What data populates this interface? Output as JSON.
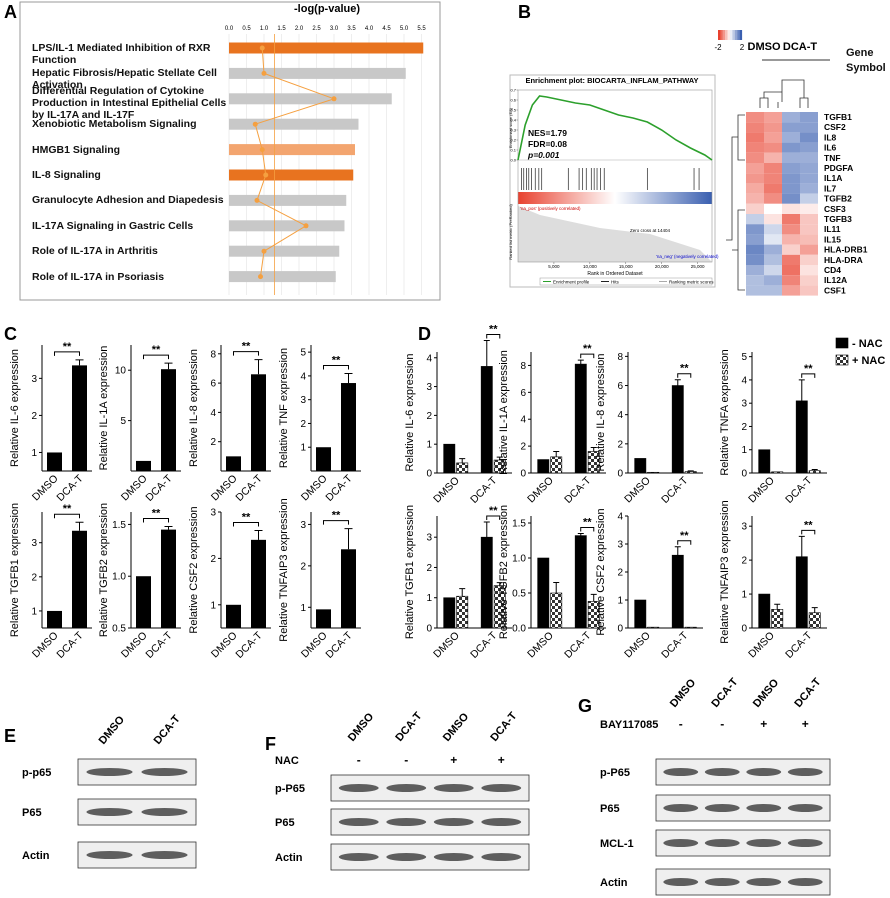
{
  "panel_labels": [
    "A",
    "B",
    "C",
    "D",
    "E",
    "F",
    "G"
  ],
  "chart_data": [
    {
      "type": "hbar",
      "title": "-log(p-value)",
      "categories": [
        "LPS/IL-1 Mediated Inhibition of RXR Function",
        "Hepatic Fibrosis/Hepatic Stellate Cell Activation",
        "Differential Regulation of Cytokine Production in Intestinal Epithelial Cells by IL-17A and IL-17F",
        "Xenobiotic Metabolism Signaling",
        "HMGB1 Signaling",
        "IL-8 Signaling",
        "Granulocyte Adhesion and Diapedesis",
        "IL-17A Signaling in Gastric Cells",
        "Role of IL-17A in Arthritis",
        "Role of IL-17A in Psoriasis"
      ],
      "values": [
        5.55,
        5.05,
        4.65,
        3.7,
        3.6,
        3.55,
        3.35,
        3.3,
        3.15,
        3.05
      ],
      "colors": [
        "#e8731f",
        "#c8c8c8",
        "#c8c8c8",
        "#c8c8c8",
        "#f3a56f",
        "#e8731f",
        "#c8c8c8",
        "#c8c8c8",
        "#c8c8c8",
        "#c8c8c8"
      ],
      "xlim": [
        0,
        5.6
      ],
      "xticks": [
        {
          "value": 0,
          "label": "0.0"
        },
        0.5,
        {
          "value": 1,
          "label": "1.0"
        },
        1.5,
        {
          "value": 2,
          "label": "2.0"
        },
        2.5,
        {
          "value": 3,
          "label": "3.0"
        },
        3.5,
        {
          "value": 4,
          "label": "4.0"
        },
        4.5,
        {
          "value": 5,
          "label": "5.0"
        },
        5.5
      ],
      "threshold": 1.3,
      "ratio": {
        "color": "#f5a040",
        "values": [
          0.95,
          1.0,
          3.0,
          0.75,
          0.95,
          1.05,
          0.8,
          2.2,
          1.0,
          0.9
        ]
      }
    },
    {
      "type": "gsea",
      "title": "Enrichment plot: BIOCARTA_INFLAM_PATHWAY",
      "stats": [
        "NES=1.79",
        "FDR=0.08",
        "p=0.001"
      ],
      "ylabel": "Enrichment score (ES)",
      "metric_label": "Ranked list metric (PreRanked)",
      "xlabel": "Rank in Ordered Dataset",
      "pos_label": "'na_pos' (positively correlated)",
      "neg_label": "'na_neg' (negatively correlated)",
      "zero_cross": "Zero cross at 14404",
      "legend": [
        "Enrichment profile",
        "Hits",
        "Ranking metric scores"
      ],
      "color": "#2ca02c",
      "x": [
        0,
        1000,
        2000,
        3000,
        4000,
        6000,
        8000,
        10000,
        12000,
        14000,
        16000,
        18000,
        20000,
        22000,
        24000,
        26000,
        27000
      ],
      "values": [
        0,
        0.35,
        0.55,
        0.64,
        0.63,
        0.6,
        0.57,
        0.55,
        0.5,
        0.45,
        0.42,
        0.38,
        0.3,
        0.2,
        0.12,
        0.05,
        0
      ],
      "hits": [
        500,
        800,
        1200,
        1500,
        1900,
        2400,
        2900,
        3300,
        7000,
        8500,
        9000,
        9500,
        10200,
        10600,
        11000,
        11500,
        12000,
        18000,
        24500,
        25200
      ],
      "xlim": [
        0,
        27000
      ],
      "xticks": [
        {
          "value": 5000,
          "label": "5,000"
        },
        {
          "value": 10000,
          "label": "10,000"
        },
        {
          "value": 15000,
          "label": "15,000"
        },
        {
          "value": 20000,
          "label": "20,000"
        },
        {
          "value": 25000,
          "label": "25,000"
        }
      ],
      "ylim": [
        -0.05,
        0.7
      ],
      "yticks": [
        {
          "value": 0,
          "label": "0.0"
        },
        0.1,
        0.2,
        0.3,
        0.4,
        0.5,
        0.6,
        0.7
      ]
    },
    {
      "type": "heatmap",
      "groups": [
        "DMSO",
        "DCA-T"
      ],
      "row_header": "Gene Symbol",
      "zlim": [
        -2,
        2
      ],
      "zticks": [
        -2,
        2
      ],
      "colors": [
        "#e8412f",
        "#ffffff",
        "#3a5fb0"
      ],
      "rows": [
        "TGFB1",
        "CSF2",
        "IL8",
        "IL6",
        "TNF",
        "PDGFA",
        "IL1A",
        "IL7",
        "TGFB2",
        "CSF3",
        "TGFB3",
        "IL11",
        "IL15",
        "HLA-DRB1",
        "HLA-DRA",
        "CD4",
        "IL12A",
        "CSF1"
      ],
      "values": [
        [
          -1.2,
          -1.0,
          1.0,
          1.2
        ],
        [
          -1.3,
          -1.1,
          1.2,
          1.2
        ],
        [
          -1.4,
          -1.0,
          1.0,
          1.4
        ],
        [
          -1.3,
          -1.2,
          1.3,
          1.2
        ],
        [
          -1.2,
          -0.8,
          1.0,
          1.0
        ],
        [
          -1.0,
          -1.3,
          1.2,
          1.1
        ],
        [
          -1.1,
          -1.3,
          1.3,
          1.1
        ],
        [
          -0.9,
          -1.4,
          1.3,
          1.0
        ],
        [
          -0.8,
          -1.2,
          1.4,
          0.6
        ],
        [
          -0.5,
          0,
          -0.3,
          -0.2
        ],
        [
          0.6,
          -0.3,
          -1.4,
          -0.6
        ],
        [
          1.3,
          0.5,
          -1.2,
          -0.6
        ],
        [
          1.2,
          0.3,
          -0.8,
          -0.7
        ],
        [
          1.5,
          1.0,
          -0.5,
          -1.0
        ],
        [
          1.4,
          0.8,
          -1.4,
          -0.5
        ],
        [
          1.0,
          0.5,
          -1.5,
          -0.3
        ],
        [
          0.8,
          1.0,
          -1.3,
          -0.5
        ],
        [
          0.8,
          0.8,
          -1.0,
          -0.6
        ]
      ]
    },
    {
      "type": "bar",
      "ylabel": "Relative IL-6 expression",
      "categories": [
        "DMSO",
        "DCA-T"
      ],
      "values": [
        1,
        3.35
      ],
      "errors": [
        null,
        0.15
      ],
      "significance": "**",
      "color": "#000000",
      "ylim": [
        0.5,
        3.9
      ],
      "yticks": [
        1,
        2,
        3
      ]
    },
    {
      "type": "bar",
      "ylabel": "Relative IL-1A expression",
      "categories": [
        "DMSO",
        "DCA-T"
      ],
      "values": [
        1,
        10.1
      ],
      "errors": [
        null,
        0.6
      ],
      "significance": "**",
      "color": "#000000",
      "ylim": [
        0,
        12.5
      ],
      "yticks": [
        5,
        10
      ]
    },
    {
      "type": "bar",
      "ylabel": "Relative IL-8 expression",
      "categories": [
        "DMSO",
        "DCA-T"
      ],
      "values": [
        1,
        6.6
      ],
      "errors": [
        null,
        1.0
      ],
      "significance": "**",
      "color": "#000000",
      "ylim": [
        0,
        8.6
      ],
      "yticks": [
        2,
        4,
        6,
        8
      ]
    },
    {
      "type": "bar",
      "ylabel": "Relative TNF expression",
      "categories": [
        "DMSO",
        "DCA-T"
      ],
      "values": [
        1,
        3.7
      ],
      "errors": [
        null,
        0.4
      ],
      "significance": "**",
      "color": "#000000",
      "ylim": [
        0,
        5.3
      ],
      "yticks": [
        1,
        2,
        3,
        4,
        5
      ]
    },
    {
      "type": "bar",
      "ylabel": "Relative TGFB1 expression",
      "categories": [
        "DMSO",
        "DCA-T"
      ],
      "values": [
        1,
        3.35
      ],
      "errors": [
        null,
        0.25
      ],
      "significance": "**",
      "color": "#000000",
      "ylim": [
        0.5,
        3.9
      ],
      "yticks": [
        1,
        2,
        3
      ]
    },
    {
      "type": "bar",
      "ylabel": "Relative TGFB2 expression",
      "categories": [
        "DMSO",
        "DCA-T"
      ],
      "values": [
        1.0,
        1.45
      ],
      "errors": [
        null,
        0.03
      ],
      "significance": "**",
      "color": "#000000",
      "ylim": [
        0.5,
        1.62
      ],
      "yticks": [
        0.5,
        {
          "value": 1,
          "label": "1.0"
        },
        1.5
      ]
    },
    {
      "type": "bar",
      "ylabel": "Relative CSF2 expression",
      "categories": [
        "DMSO",
        "DCA-T"
      ],
      "values": [
        1,
        2.4
      ],
      "errors": [
        null,
        0.2
      ],
      "significance": "**",
      "color": "#000000",
      "ylim": [
        0.5,
        3.0
      ],
      "yticks": [
        1,
        2,
        3
      ]
    },
    {
      "type": "bar",
      "ylabel": "Relative TNFAIP3 expression",
      "categories": [
        "DMSO",
        "DCA-T"
      ],
      "values": [
        0.95,
        2.4
      ],
      "errors": [
        null,
        0.5
      ],
      "significance": "**",
      "color": "#000000",
      "ylim": [
        0.5,
        3.3
      ],
      "yticks": [
        1,
        2,
        3
      ]
    },
    {
      "type": "grouped_bar",
      "ylabel": "Relative IL-6 expression",
      "categories": [
        "DMSO",
        "DCA-T"
      ],
      "significance": "**",
      "ylim": [
        0,
        4.2
      ],
      "yticks": [
        0,
        1,
        2,
        3,
        4
      ],
      "series": [
        {
          "values": [
            1,
            3.7
          ],
          "errors": [
            null,
            0.9
          ]
        },
        {
          "values": [
            0.35,
            0.45
          ],
          "errors": [
            0.15,
            0.1
          ]
        }
      ]
    },
    {
      "type": "grouped_bar",
      "ylabel": "Relative IL-1A expression",
      "categories": [
        "DMSO",
        "DCA-T"
      ],
      "significance": "**",
      "ylim": [
        0,
        9
      ],
      "yticks": [
        0,
        2,
        4,
        6,
        8
      ],
      "series": [
        {
          "values": [
            1,
            8.1
          ],
          "errors": [
            null,
            0.3
          ]
        },
        {
          "values": [
            1.2,
            1.6
          ],
          "errors": [
            0.4,
            0.3
          ]
        }
      ]
    },
    {
      "type": "grouped_bar",
      "ylabel": "Relative IL-8 expression",
      "categories": [
        "DMSO",
        "DCA-T"
      ],
      "significance": "**",
      "ylim": [
        0,
        8.3
      ],
      "yticks": [
        0,
        2,
        4,
        6,
        8
      ],
      "series": [
        {
          "values": [
            1,
            6.0
          ],
          "errors": [
            null,
            0.4
          ]
        },
        {
          "values": [
            0.05,
            0.1
          ],
          "errors": [
            null,
            0.05
          ]
        }
      ]
    },
    {
      "type": "grouped_bar",
      "ylabel": "Relative TNFA expression",
      "categories": [
        "DMSO",
        "DCA-T"
      ],
      "significance": "**",
      "ylim": [
        0,
        5.2
      ],
      "yticks": [
        0,
        1,
        2,
        3,
        4,
        5
      ],
      "series": [
        {
          "values": [
            1,
            3.1
          ],
          "errors": [
            null,
            0.9
          ]
        },
        {
          "values": [
            0.05,
            0.1
          ],
          "errors": [
            null,
            0.05
          ]
        }
      ]
    },
    {
      "type": "grouped_bar",
      "ylabel": "Relative TGFB1 expression",
      "categories": [
        "DMSO",
        "DCA-T"
      ],
      "significance": "**",
      "ylim": [
        0,
        3.7
      ],
      "yticks": [
        0,
        1,
        2,
        3
      ],
      "series": [
        {
          "values": [
            1,
            3.0
          ],
          "errors": [
            null,
            0.5
          ]
        },
        {
          "values": [
            1.05,
            1.4
          ],
          "errors": [
            0.25,
            0.1
          ]
        }
      ]
    },
    {
      "type": "grouped_bar",
      "ylabel": "Relative TGFB2 expression",
      "categories": [
        "DMSO",
        "DCA-T"
      ],
      "significance": "**",
      "ylim": [
        0,
        1.6
      ],
      "yticks": [
        {
          "value": 0,
          "label": "0.0"
        },
        0.5,
        {
          "value": 1,
          "label": "1.0"
        },
        1.5
      ],
      "series": [
        {
          "values": [
            1.0,
            1.32
          ],
          "errors": [
            null,
            0.03
          ]
        },
        {
          "values": [
            0.5,
            0.38
          ],
          "errors": [
            0.15,
            0.1
          ]
        }
      ]
    },
    {
      "type": "grouped_bar",
      "ylabel": "Relative CSF2 expression",
      "categories": [
        "DMSO",
        "DCA-T"
      ],
      "significance": "**",
      "ylim": [
        0,
        4
      ],
      "yticks": [
        0,
        1,
        2,
        3,
        4
      ],
      "series": [
        {
          "values": [
            1.0,
            2.6
          ],
          "errors": [
            null,
            0.3
          ]
        },
        {
          "values": [
            0.03,
            0.03
          ],
          "errors": [
            null,
            null
          ]
        }
      ]
    },
    {
      "type": "grouped_bar",
      "ylabel": "Relative TNFAIP3 expression",
      "categories": [
        "DMSO",
        "DCA-T"
      ],
      "significance": "**",
      "ylim": [
        0,
        3.3
      ],
      "yticks": [
        0,
        1,
        2,
        3
      ],
      "series": [
        {
          "values": [
            1.0,
            2.1
          ],
          "errors": [
            null,
            0.6
          ]
        },
        {
          "values": [
            0.55,
            0.45
          ],
          "errors": [
            0.15,
            0.15
          ]
        }
      ]
    }
  ],
  "nac_legend": [
    {
      "name": "- NAC",
      "color": "#000000"
    },
    {
      "name": "+ NAC",
      "color": "#ffffff",
      "pattern": "checker"
    }
  ],
  "blots": [
    {
      "columns": [
        "DMSO",
        "DCA-T"
      ],
      "rows": [
        "p-p65",
        "P65",
        "Actin"
      ]
    },
    {
      "columns": [
        "DMSO",
        "DCA-T",
        "DMSO",
        "DCA-T"
      ],
      "treatment": {
        "label": "NAC",
        "signs": [
          "-",
          "-",
          "+",
          "+"
        ]
      },
      "rows": [
        "p-P65",
        "P65",
        "Actin"
      ]
    },
    {
      "columns": [
        "DMSO",
        "DCA-T",
        "DMSO",
        "DCA-T"
      ],
      "treatment": {
        "label": "BAY117085",
        "signs": [
          "-",
          "-",
          "+",
          "+"
        ]
      },
      "rows": [
        "p-P65",
        "P65",
        "MCL-1",
        "Actin"
      ]
    }
  ]
}
